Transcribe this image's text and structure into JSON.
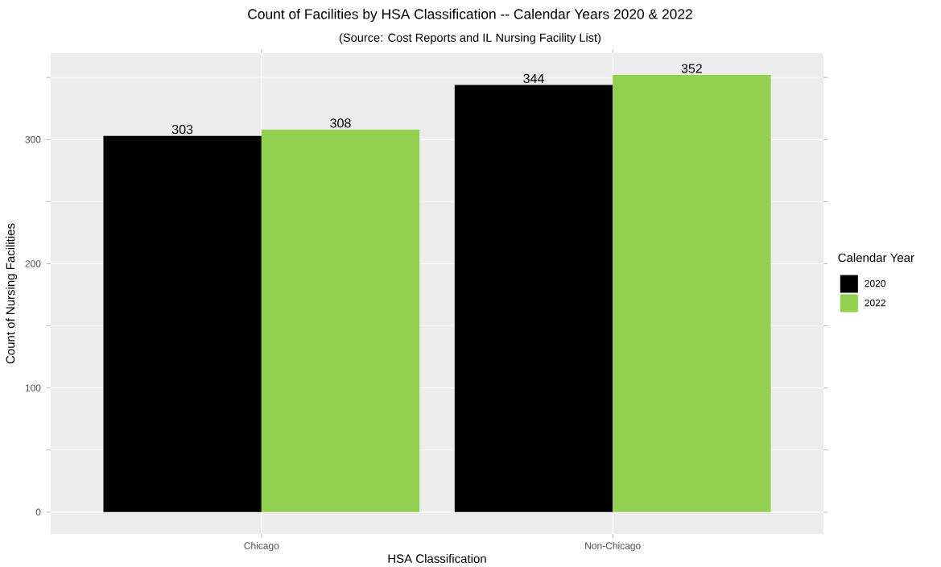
{
  "chart_data": {
    "type": "bar",
    "title": "Count of Facilities by HSA Classification -- Calendar Years 2020 & 2022",
    "subtitle": "(Source: Cost Reports and IL Nursing Facility List)",
    "xlabel": "HSA Classification",
    "ylabel": "Count of Nursing Facilities",
    "legend_title": "Calendar Year",
    "categories": [
      "Chicago",
      "Non-Chicago"
    ],
    "series": [
      {
        "name": "2020",
        "color": "#000000",
        "values": [
          303,
          344
        ]
      },
      {
        "name": "2022",
        "color": "#92d050",
        "values": [
          308,
          352
        ]
      }
    ],
    "ylim": [
      -17.6,
      369.6
    ],
    "yticks": [
      0,
      100,
      200,
      300
    ],
    "grid": true,
    "legend": "right",
    "data_labels": true
  }
}
